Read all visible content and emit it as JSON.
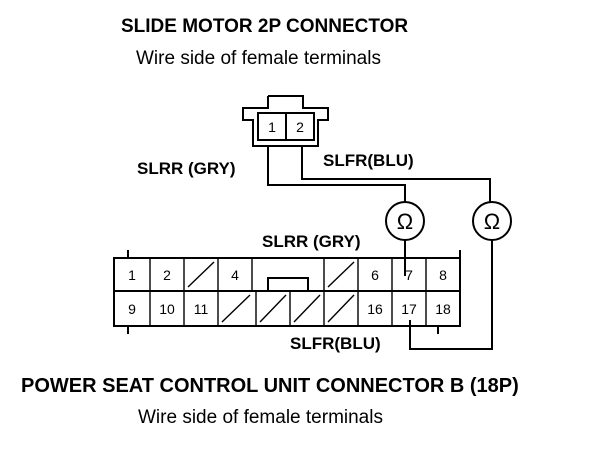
{
  "slide_motor": {
    "title": "SLIDE MOTOR 2P CONNECTOR",
    "subtitle": "Wire side of female terminals",
    "terminals": [
      "1",
      "2"
    ]
  },
  "wires": {
    "slrr_top": "SLRR (GRY)",
    "slfr_top": "SLFR(BLU)",
    "slrr_mid": "SLRR (GRY)",
    "slfr_bottom": "SLFR(BLU)"
  },
  "ohmmeter_symbol": "Ω",
  "control_unit": {
    "title": "POWER SEAT CONTROL UNIT CONNECTOR B (18P)",
    "subtitle": "Wire side of female terminals",
    "top_row": [
      "1",
      "2",
      "",
      "4",
      "",
      "",
      "",
      "6",
      "7",
      "8"
    ],
    "bottom_row": [
      "9",
      "10",
      "11",
      "",
      "",
      "",
      "",
      "16",
      "17",
      "18"
    ]
  }
}
